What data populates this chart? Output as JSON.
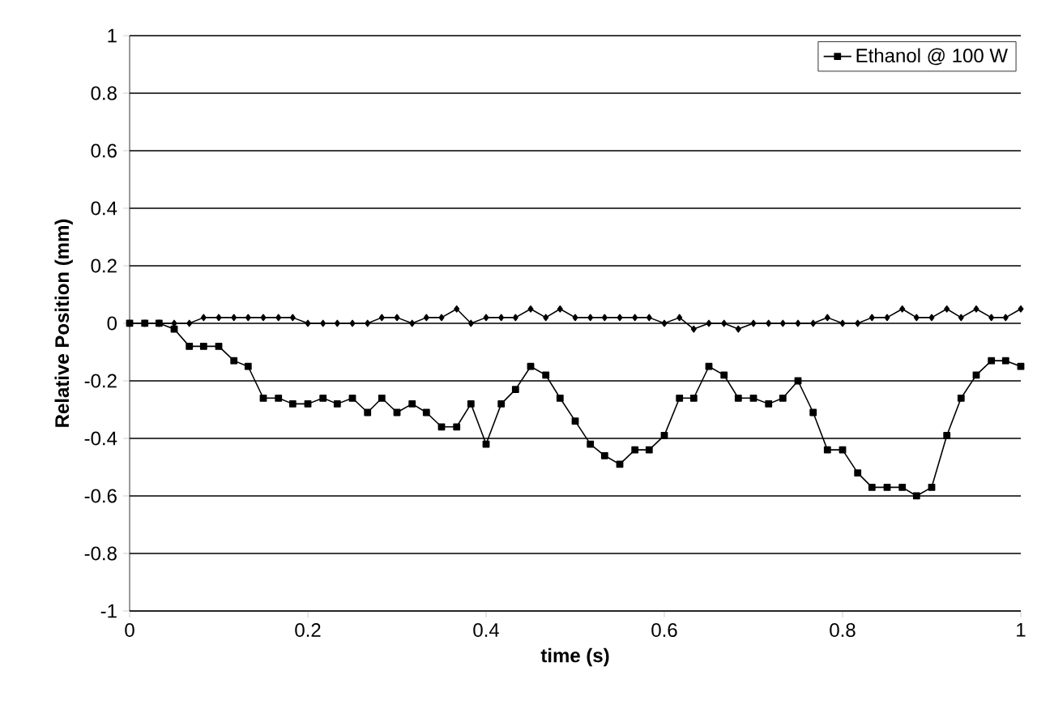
{
  "chart_data": {
    "type": "line",
    "xlabel": "time (s)",
    "ylabel": "Relative Position (mm)",
    "x": [
      0,
      0.017,
      0.033,
      0.05,
      0.067,
      0.083,
      0.1,
      0.117,
      0.133,
      0.15,
      0.167,
      0.183,
      0.2,
      0.217,
      0.233,
      0.25,
      0.267,
      0.283,
      0.3,
      0.317,
      0.333,
      0.35,
      0.367,
      0.383,
      0.4,
      0.417,
      0.433,
      0.45,
      0.467,
      0.483,
      0.5,
      0.517,
      0.533,
      0.55,
      0.567,
      0.583,
      0.6,
      0.617,
      0.633,
      0.65,
      0.667,
      0.683,
      0.7,
      0.717,
      0.733,
      0.75,
      0.767,
      0.783,
      0.8,
      0.817,
      0.833,
      0.85,
      0.867,
      0.883,
      0.9,
      0.917,
      0.933,
      0.95,
      0.967,
      0.983,
      1
    ],
    "series": [
      {
        "color": "#000000",
        "marker": "diamond",
        "values": [
          0,
          0,
          0,
          0,
          0,
          0.02,
          0.02,
          0.02,
          0.02,
          0.02,
          0.02,
          0.02,
          0,
          0,
          0,
          0,
          0,
          0.02,
          0.02,
          0,
          0.02,
          0.02,
          0.05,
          0,
          0.02,
          0.02,
          0.02,
          0.05,
          0.02,
          0.05,
          0.02,
          0.02,
          0.02,
          0.02,
          0.02,
          0.02,
          0,
          0.02,
          -0.02,
          0,
          0,
          -0.02,
          0,
          0,
          0,
          0,
          0,
          0.02,
          0,
          0,
          0.02,
          0.02,
          0.05,
          0.02,
          0.02,
          0.05,
          0.02,
          0.05,
          0.02,
          0.02,
          0.05
        ]
      },
      {
        "name": "Ethanol @ 100 W",
        "color": "#000000",
        "marker": "square",
        "values": [
          0,
          0,
          0,
          -0.02,
          -0.08,
          -0.08,
          -0.08,
          -0.13,
          -0.15,
          -0.26,
          -0.26,
          -0.28,
          -0.28,
          -0.26,
          -0.28,
          -0.26,
          -0.31,
          -0.26,
          -0.31,
          -0.28,
          -0.31,
          -0.36,
          -0.36,
          -0.28,
          -0.42,
          -0.28,
          -0.23,
          -0.15,
          -0.18,
          -0.26,
          -0.34,
          -0.42,
          -0.46,
          -0.49,
          -0.44,
          -0.44,
          -0.39,
          -0.26,
          -0.26,
          -0.15,
          -0.18,
          -0.26,
          -0.26,
          -0.28,
          -0.26,
          -0.2,
          -0.31,
          -0.44,
          -0.44,
          -0.52,
          -0.57,
          -0.57,
          -0.57,
          -0.6,
          -0.57,
          -0.39,
          -0.26,
          -0.18,
          -0.13,
          -0.13,
          -0.15
        ]
      }
    ],
    "xlim": [
      0,
      1
    ],
    "xticks": [
      0,
      0.2,
      0.4,
      0.6,
      0.8,
      1
    ],
    "ylim": [
      -1,
      1
    ],
    "yticks": [
      -1,
      -0.8,
      -0.6,
      -0.4,
      -0.2,
      0,
      0.2,
      0.4,
      0.6,
      0.8,
      1
    ],
    "grid": "y",
    "legend": "top right",
    "line_style": "solid"
  }
}
